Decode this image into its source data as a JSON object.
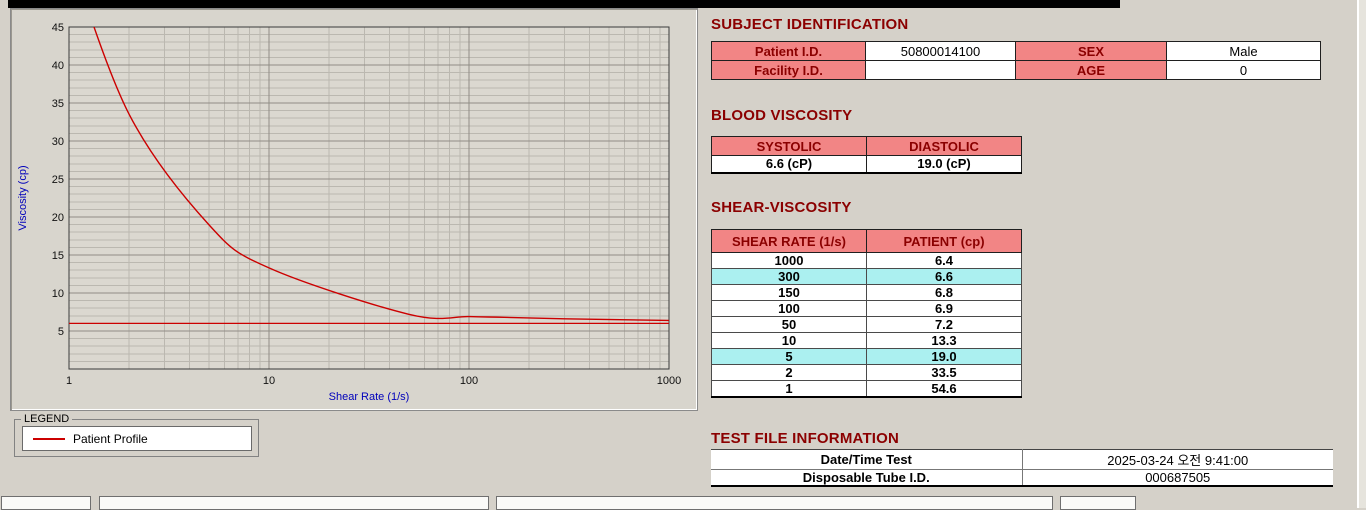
{
  "window": {
    "background": "#d5d1c9",
    "top_bar_color": "#000000"
  },
  "colors": {
    "heading": "#8b0000",
    "table_header_bg": "#f28585",
    "table_header_text": "#8b0000"
  },
  "chart": {
    "xlabel": "Shear Rate (1/s)",
    "ylabel": "Viscosity (cp)",
    "x_ticks": [
      "1",
      "10",
      "100",
      "1000"
    ],
    "y_ticks": [
      "5",
      "10",
      "15",
      "20",
      "25",
      "30",
      "35",
      "40",
      "45"
    ],
    "axis_label_color": "#0000bb",
    "curve_color": "#cc0000"
  },
  "chart_data": {
    "type": "line",
    "xlabel": "Shear Rate (1/s)",
    "ylabel": "Viscosity (cp)",
    "xscale": "log",
    "xlim": [
      1,
      1000
    ],
    "ylim": [
      0,
      45
    ],
    "grid": true,
    "x": [
      1,
      2,
      5,
      10,
      50,
      100,
      150,
      300,
      1000
    ],
    "series": [
      {
        "name": "Patient Profile",
        "color": "#cc0000",
        "values": [
          54.6,
          33.5,
          19.0,
          13.3,
          7.2,
          6.9,
          6.8,
          6.6,
          6.4
        ]
      }
    ],
    "reference_line_y": 6.0,
    "legend_position": "below-left-groupbox"
  },
  "legend": {
    "group_label": "LEGEND",
    "entries": [
      {
        "label": "Patient Profile",
        "color": "#cc0000"
      }
    ]
  },
  "subject_identification": {
    "title": "SUBJECT IDENTIFICATION",
    "fields": [
      {
        "label": "Patient I.D.",
        "value": "50800014100"
      },
      {
        "label": "SEX",
        "value": "Male"
      },
      {
        "label": "Facility I.D.",
        "value": ""
      },
      {
        "label": "AGE",
        "value": "0"
      }
    ]
  },
  "blood_viscosity": {
    "title": "BLOOD VISCOSITY",
    "columns": [
      "SYSTOLIC",
      "DIASTOLIC"
    ],
    "values": [
      "6.6 (cP)",
      "19.0 (cP)"
    ]
  },
  "shear_viscosity": {
    "title": "SHEAR-VISCOSITY",
    "columns": [
      "SHEAR RATE (1/s)",
      "PATIENT (cp)"
    ],
    "highlight_color": "#abf0f0",
    "rows": [
      {
        "rate": "1000",
        "value": "6.4",
        "highlight": false
      },
      {
        "rate": "300",
        "value": "6.6",
        "highlight": true
      },
      {
        "rate": "150",
        "value": "6.8",
        "highlight": false
      },
      {
        "rate": "100",
        "value": "6.9",
        "highlight": false
      },
      {
        "rate": "50",
        "value": "7.2",
        "highlight": false
      },
      {
        "rate": "10",
        "value": "13.3",
        "highlight": false
      },
      {
        "rate": "5",
        "value": "19.0",
        "highlight": true
      },
      {
        "rate": "2",
        "value": "33.5",
        "highlight": false
      },
      {
        "rate": "1",
        "value": "54.6",
        "highlight": false
      }
    ]
  },
  "test_file_information": {
    "title": "TEST FILE INFORMATION",
    "rows": [
      {
        "label": "Date/Time Test",
        "value": "2025-03-24   오전 9:41:00"
      },
      {
        "label": "Disposable Tube I.D.",
        "value": "000687505"
      }
    ]
  }
}
